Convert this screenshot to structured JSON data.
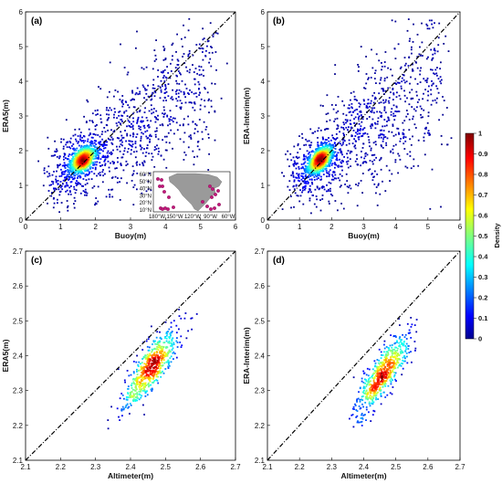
{
  "chart_data": [
    {
      "type": "scatter",
      "panel_label": "(a)",
      "xlabel": "Buoy(m)",
      "ylabel": "ERA5(m)",
      "xlim": [
        0,
        6
      ],
      "ylim": [
        0,
        6
      ],
      "xticks": [
        "0",
        "1",
        "2",
        "3",
        "4",
        "5",
        "6"
      ],
      "yticks": [
        "0",
        "1",
        "2",
        "3",
        "4",
        "5",
        "6"
      ],
      "reference_line": "1:1 dash-dot",
      "cloud": {
        "center": [
          1.7,
          1.8
        ],
        "dense_core_sd": [
          0.15,
          0.12
        ],
        "spread_to": [
          5.5,
          5.6
        ],
        "approx_points": 3000
      }
    },
    {
      "type": "scatter",
      "panel_label": "(b)",
      "xlabel": "Buoy(m)",
      "ylabel": "ERA-Interim(m)",
      "xlim": [
        0,
        6
      ],
      "ylim": [
        0,
        6
      ],
      "xticks": [
        "0",
        "1",
        "2",
        "3",
        "4",
        "5",
        "6"
      ],
      "yticks": [
        "0",
        "1",
        "2",
        "3",
        "4",
        "5",
        "6"
      ],
      "reference_line": "1:1 dash-dot",
      "cloud": {
        "center": [
          1.7,
          1.8
        ],
        "dense_core_sd": [
          0.15,
          0.12
        ],
        "spread_to": [
          5.5,
          5.6
        ],
        "approx_points": 3000
      }
    },
    {
      "type": "scatter",
      "panel_label": "(c)",
      "xlabel": "Altimeter(m)",
      "ylabel": "ERA5(m)",
      "xlim": [
        2.1,
        2.7
      ],
      "ylim": [
        2.1,
        2.7
      ],
      "xticks": [
        "2.1",
        "2.2",
        "2.3",
        "2.4",
        "2.5",
        "2.6",
        "2.7"
      ],
      "yticks": [
        "2.1",
        "2.2",
        "2.3",
        "2.4",
        "2.5",
        "2.6",
        "2.7"
      ],
      "reference_line": "1:1 dash-dot",
      "cloud": {
        "center": [
          2.46,
          2.37
        ],
        "x_range": [
          2.3,
          2.62
        ],
        "y_range": [
          2.2,
          2.52
        ],
        "approx_points": 600
      }
    },
    {
      "type": "scatter",
      "panel_label": "(d)",
      "xlabel": "Altimeter(m)",
      "ylabel": "ERA-Interim(m)",
      "xlim": [
        2.1,
        2.7
      ],
      "ylim": [
        2.1,
        2.7
      ],
      "xticks": [
        "2.1",
        "2.2",
        "2.3",
        "2.4",
        "2.5",
        "2.6",
        "2.7"
      ],
      "yticks": [
        "2.1",
        "2.2",
        "2.3",
        "2.4",
        "2.5",
        "2.6",
        "2.7"
      ],
      "reference_line": "1:1 dash-dot",
      "cloud": {
        "center": [
          2.46,
          2.35
        ],
        "x_range": [
          2.3,
          2.62
        ],
        "y_range": [
          2.18,
          2.5
        ],
        "approx_points": 600
      }
    }
  ],
  "colorbar": {
    "label": "Density",
    "range": [
      0,
      1
    ],
    "ticks": [
      "0",
      "0.1",
      "0.2",
      "0.3",
      "0.4",
      "0.5",
      "0.6",
      "0.7",
      "0.8",
      "0.9",
      "1"
    ],
    "colormap": "jet"
  },
  "inset_map": {
    "lat_labels": [
      "60°N",
      "50°N",
      "40°N",
      "30°N",
      "20°N",
      "10°N"
    ],
    "lon_labels": [
      "180°W",
      "150°W",
      "120°W",
      "90°W",
      "60°W"
    ],
    "land_color": "#9a9a9a",
    "buoy_color": "#c2187a"
  }
}
